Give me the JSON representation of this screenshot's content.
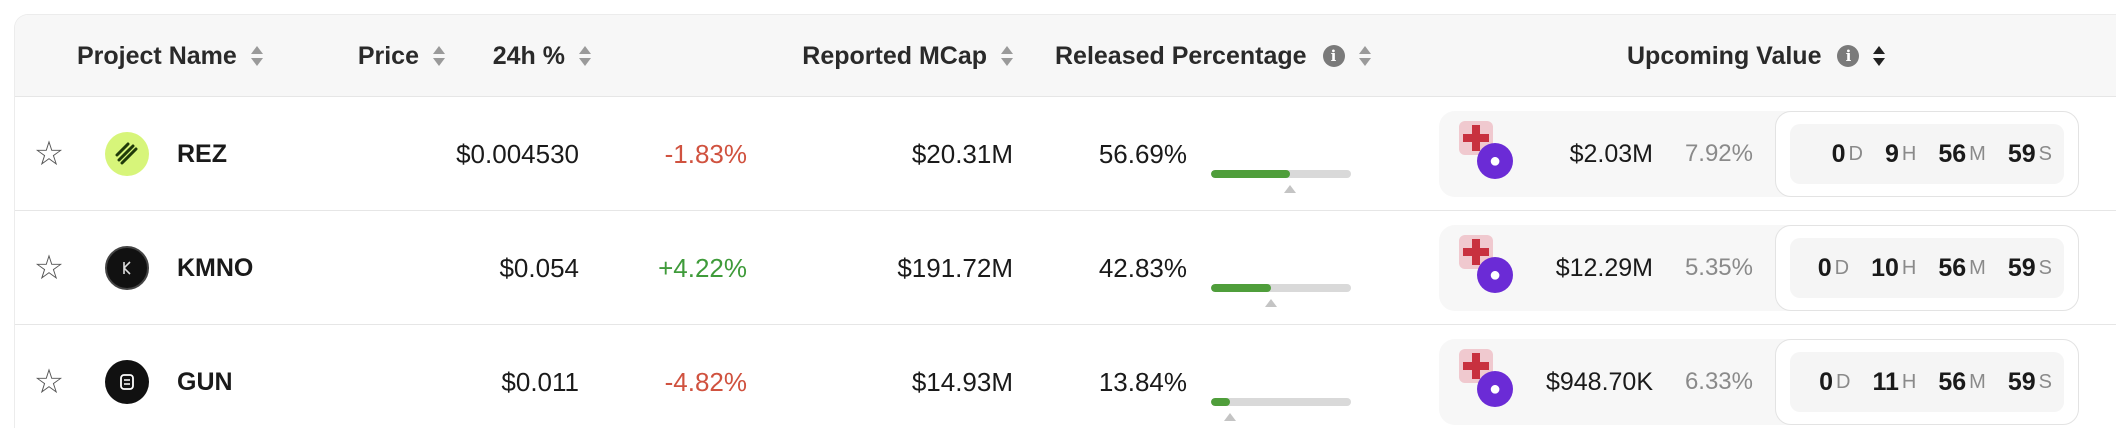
{
  "header": {
    "project_name": "Project Name",
    "price": "Price",
    "change_24h": "24h %",
    "reported_mcap": "Reported MCap",
    "released_percentage": "Released Percentage",
    "upcoming_value": "Upcoming Value"
  },
  "rows": [
    {
      "name": "REZ",
      "price": "$0.004530",
      "change": "-1.83%",
      "change_direction": "negative",
      "mcap": "$20.31M",
      "released": "56.69%",
      "released_fraction": 0.5669,
      "upcoming_value": "$2.03M",
      "upcoming_pct": "7.92%",
      "countdown": {
        "d": "0",
        "h": "9",
        "m": "56",
        "s": "59"
      }
    },
    {
      "name": "KMNO",
      "price": "$0.054",
      "change": "+4.22%",
      "change_direction": "positive",
      "mcap": "$191.72M",
      "released": "42.83%",
      "released_fraction": 0.4283,
      "upcoming_value": "$12.29M",
      "upcoming_pct": "5.35%",
      "countdown": {
        "d": "0",
        "h": "10",
        "m": "56",
        "s": "59"
      }
    },
    {
      "name": "GUN",
      "price": "$0.011",
      "change": "-4.82%",
      "change_direction": "negative",
      "mcap": "$14.93M",
      "released": "13.84%",
      "released_fraction": 0.1384,
      "upcoming_value": "$948.70K",
      "upcoming_pct": "6.33%",
      "countdown": {
        "d": "0",
        "h": "11",
        "m": "56",
        "s": "59"
      }
    }
  ],
  "units": {
    "d": "D",
    "h": "H",
    "m": "M",
    "s": "S"
  },
  "colors": {
    "negative": "#d0523f",
    "positive": "#3f9b3a",
    "bar_fill": "#4f9e3b",
    "upcoming_icon": "#6b2bd6"
  },
  "icons": {
    "favorite": "star-outline-icon",
    "info": "info-icon",
    "sort": "sort-icon",
    "unlock": "unlock-icon"
  }
}
